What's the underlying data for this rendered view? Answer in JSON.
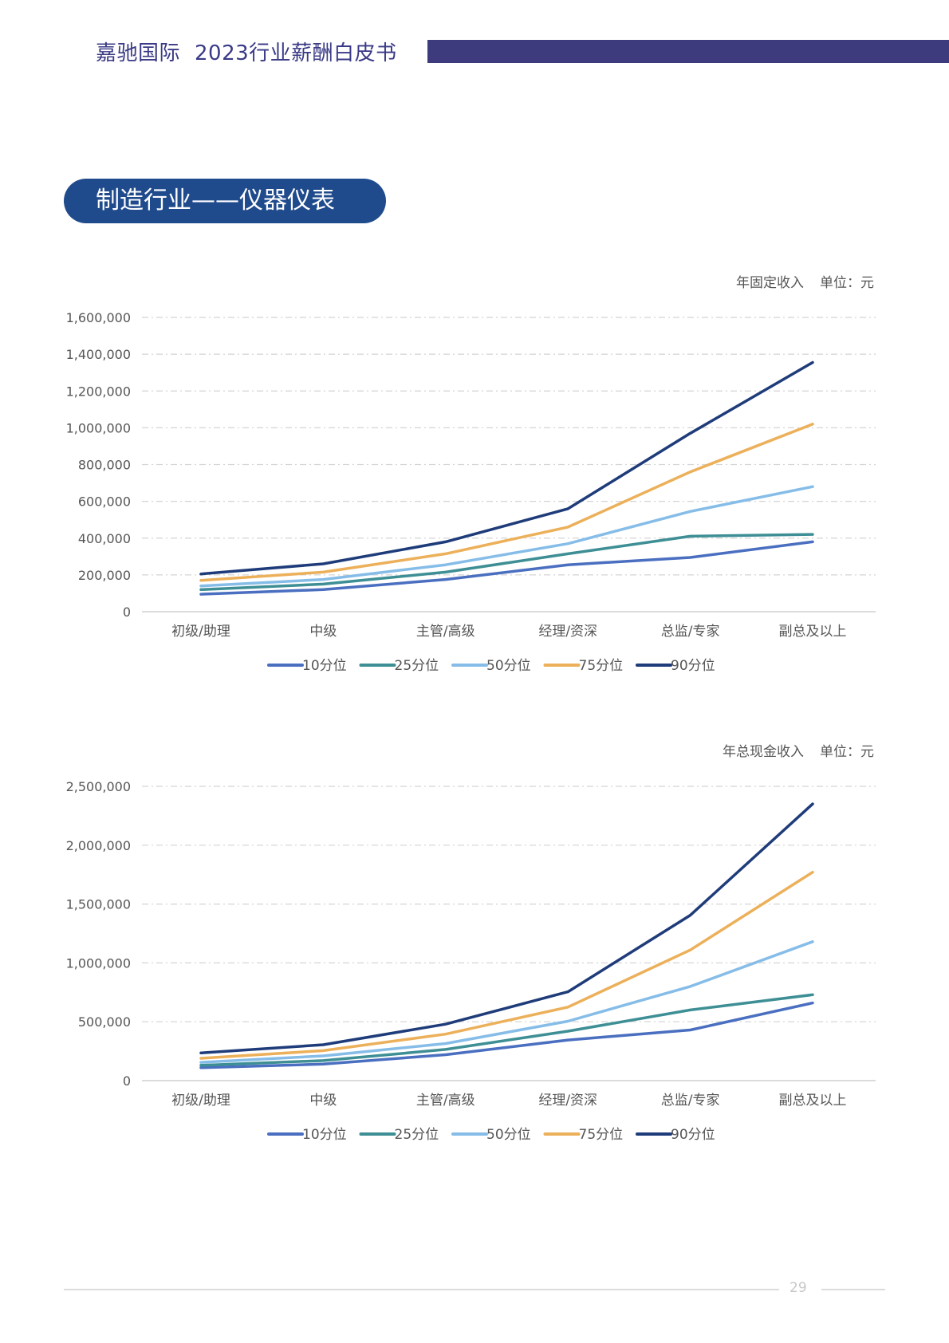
{
  "header": {
    "company": "嘉驰国际",
    "report": "2023行业薪酬白皮书"
  },
  "section": {
    "title": "制造行业——仪器仪表"
  },
  "series_colors": {
    "10分位": "#4a6fc0",
    "25分位": "#3e8f95",
    "50分位": "#86bde8",
    "75分位": "#ecb05a",
    "90分位": "#1f3c7a"
  },
  "chart_data": [
    {
      "type": "line",
      "title": "年固定收入",
      "unit_label": "单位：元",
      "categories": [
        "初级/助理",
        "中级",
        "主管/高级",
        "经理/资深",
        "总监/专家",
        "副总及以上"
      ],
      "ylim": [
        0,
        1600000
      ],
      "yticks": [
        0,
        200000,
        400000,
        600000,
        800000,
        1000000,
        1200000,
        1400000,
        1600000
      ],
      "ytick_labels": [
        "0",
        "200,000",
        "400,000",
        "600,000",
        "800,000",
        "1,000,000",
        "1,200,000",
        "1,400,000",
        "1,600,000"
      ],
      "grid": true,
      "legend_position": "bottom-center",
      "series": [
        {
          "name": "10分位",
          "values": [
            95000,
            120000,
            175000,
            255000,
            295000,
            380000
          ]
        },
        {
          "name": "25分位",
          "values": [
            120000,
            150000,
            215000,
            315000,
            410000,
            420000
          ]
        },
        {
          "name": "50分位",
          "values": [
            140000,
            175000,
            255000,
            370000,
            545000,
            680000
          ]
        },
        {
          "name": "75分位",
          "values": [
            170000,
            215000,
            315000,
            460000,
            760000,
            1020000
          ]
        },
        {
          "name": "90分位",
          "values": [
            205000,
            260000,
            380000,
            560000,
            970000,
            1355000
          ]
        }
      ]
    },
    {
      "type": "line",
      "title": "年总现金收入",
      "unit_label": "单位：元",
      "categories": [
        "初级/助理",
        "中级",
        "主管/高级",
        "经理/资深",
        "总监/专家",
        "副总及以上"
      ],
      "ylim": [
        0,
        2500000
      ],
      "yticks": [
        0,
        500000,
        1000000,
        1500000,
        2000000,
        2500000
      ],
      "ytick_labels": [
        "0",
        "500,000",
        "1,000,000",
        "1,500,000",
        "2,000,000",
        "2,500,000"
      ],
      "grid": true,
      "legend_position": "bottom-center",
      "series": [
        {
          "name": "10分位",
          "values": [
            110000,
            140000,
            220000,
            345000,
            430000,
            660000
          ]
        },
        {
          "name": "25分位",
          "values": [
            130000,
            170000,
            265000,
            420000,
            600000,
            730000
          ]
        },
        {
          "name": "50分位",
          "values": [
            155000,
            210000,
            315000,
            505000,
            800000,
            1180000
          ]
        },
        {
          "name": "75分位",
          "values": [
            190000,
            255000,
            395000,
            625000,
            1110000,
            1770000
          ]
        },
        {
          "name": "90分位",
          "values": [
            235000,
            305000,
            480000,
            755000,
            1405000,
            2350000
          ]
        }
      ]
    }
  ],
  "footer": {
    "page_number": "29"
  }
}
